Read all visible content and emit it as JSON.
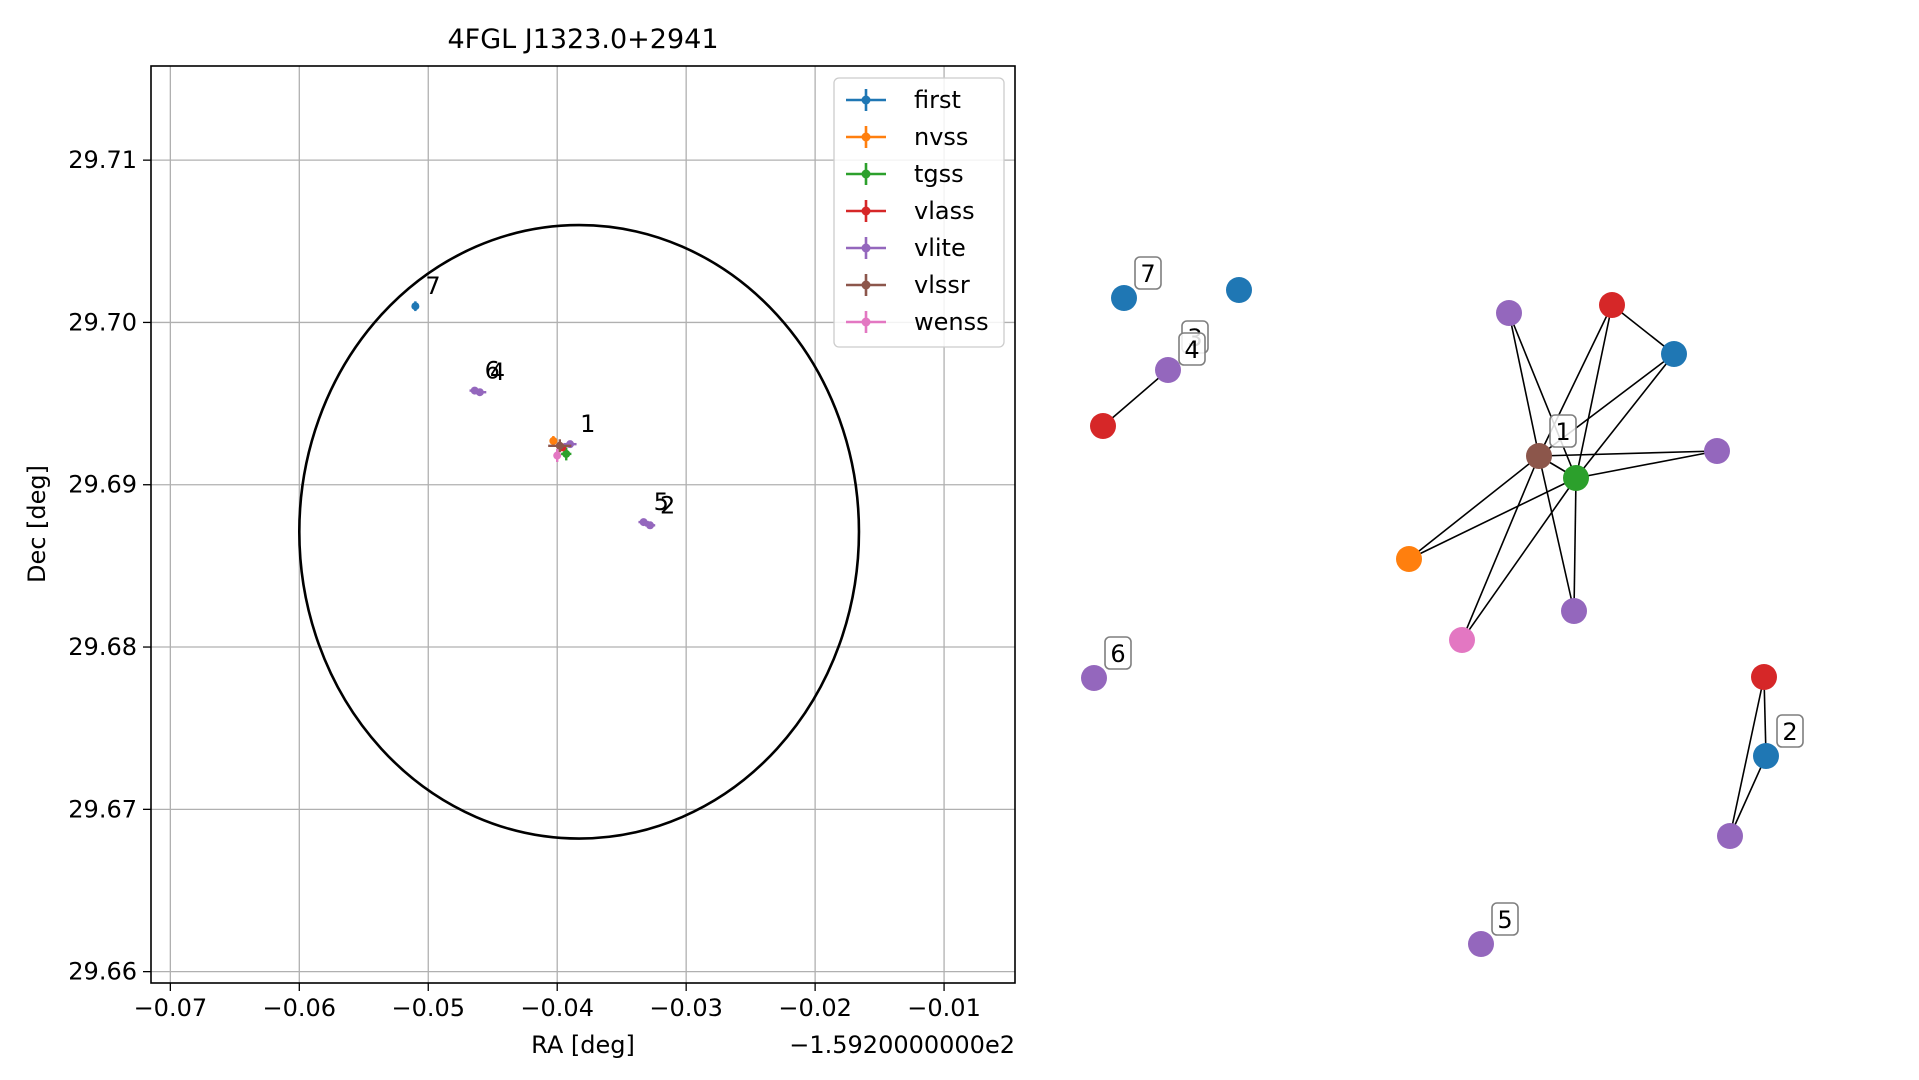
{
  "chart_data": [
    {
      "type": "scatter",
      "title": "4FGL J1323.0+2941",
      "xlabel": "RA [deg]",
      "ylabel": "Dec [deg]",
      "x_offset_label": "−1.5920000000e2",
      "xlim": [
        -0.0715,
        -0.0045
      ],
      "ylim": [
        29.6593,
        29.7158
      ],
      "x_ticks": [
        -0.07,
        -0.06,
        -0.05,
        -0.04,
        -0.03,
        -0.02,
        -0.01
      ],
      "x_tick_labels": [
        "−0.07",
        "−0.06",
        "−0.05",
        "−0.04",
        "−0.03",
        "−0.02",
        "−0.01"
      ],
      "y_ticks": [
        29.66,
        29.67,
        29.68,
        29.69,
        29.7,
        29.71
      ],
      "y_tick_labels": [
        "29.66",
        "29.67",
        "29.68",
        "29.69",
        "29.70",
        "29.71"
      ],
      "grid": true,
      "legend_position": "top-right",
      "ellipse": {
        "center": [
          -0.0383,
          29.6871
        ],
        "semi_axis_x": 0.0217,
        "semi_axis_y": 0.0189
      },
      "series": [
        {
          "name": "first",
          "color": "#1f77b4",
          "points": [
            {
              "x": -0.051,
              "y": 29.701,
              "xerr": 0.0002,
              "yerr": 0.0003
            }
          ]
        },
        {
          "name": "nvss",
          "color": "#ff7f0e",
          "points": [
            {
              "x": -0.0403,
              "y": 29.6927,
              "xerr": 0.0003,
              "yerr": 0.0003
            }
          ]
        },
        {
          "name": "tgss",
          "color": "#2ca02c",
          "points": [
            {
              "x": -0.0393,
              "y": 29.6919,
              "xerr": 0.0004,
              "yerr": 0.0004
            }
          ]
        },
        {
          "name": "vlass",
          "color": "#d62728",
          "points": [
            {
              "x": -0.0396,
              "y": 29.6923,
              "xerr": 0.0001,
              "yerr": 0.0001
            }
          ]
        },
        {
          "name": "vlite",
          "color": "#9467bd",
          "points": [
            {
              "x": -0.039,
              "y": 29.6925,
              "xerr": 0.0005,
              "yerr": 0.0002
            },
            {
              "x": -0.046,
              "y": 29.6957,
              "xerr": 0.0005,
              "yerr": 0.0002
            },
            {
              "x": -0.0464,
              "y": 29.6958,
              "xerr": 0.0004,
              "yerr": 0.0002
            },
            {
              "x": -0.0328,
              "y": 29.6875,
              "xerr": 0.0004,
              "yerr": 0.0002
            },
            {
              "x": -0.0333,
              "y": 29.6877,
              "xerr": 0.0004,
              "yerr": 0.0002
            }
          ]
        },
        {
          "name": "vlssr",
          "color": "#8c564b",
          "points": [
            {
              "x": -0.0398,
              "y": 29.6924,
              "xerr": 0.0009,
              "yerr": 0.0004
            }
          ]
        },
        {
          "name": "wenss",
          "color": "#e377c2",
          "points": [
            {
              "x": -0.04,
              "y": 29.6918,
              "xerr": 0.0002,
              "yerr": 0.0004
            }
          ]
        }
      ],
      "cluster_labels": [
        {
          "text": "7",
          "x": -0.051,
          "y": 29.701
        },
        {
          "text": "6",
          "x": -0.0464,
          "y": 29.6958
        },
        {
          "text": "4",
          "x": -0.046,
          "y": 29.6957
        },
        {
          "text": "1",
          "x": -0.039,
          "y": 29.6925
        },
        {
          "text": "5",
          "x": -0.0333,
          "y": 29.6877
        },
        {
          "text": "2",
          "x": -0.0328,
          "y": 29.6875
        }
      ]
    },
    {
      "type": "network",
      "nodes": [
        {
          "id": "n7a",
          "color": "#1f77b4"
        },
        {
          "id": "n7b",
          "color": "#1f77b4"
        },
        {
          "id": "n4",
          "color": "#9467bd"
        },
        {
          "id": "n3",
          "color": "#d62728"
        },
        {
          "id": "n6",
          "color": "#9467bd"
        },
        {
          "id": "n5",
          "color": "#9467bd"
        },
        {
          "id": "c_vlite_top",
          "color": "#9467bd"
        },
        {
          "id": "c_vlass",
          "color": "#d62728"
        },
        {
          "id": "c_first",
          "color": "#1f77b4"
        },
        {
          "id": "c_vlssr",
          "color": "#8c564b"
        },
        {
          "id": "c_tgss",
          "color": "#2ca02c"
        },
        {
          "id": "c_vlite_right",
          "color": "#9467bd"
        },
        {
          "id": "c_nvss",
          "color": "#ff7f0e"
        },
        {
          "id": "c_vlite_bottom",
          "color": "#9467bd"
        },
        {
          "id": "c_wenss",
          "color": "#e377c2"
        },
        {
          "id": "n2_vlass",
          "color": "#d62728"
        },
        {
          "id": "n2_first",
          "color": "#1f77b4"
        },
        {
          "id": "n2_vlite",
          "color": "#9467bd"
        }
      ],
      "edges": [
        [
          "n4",
          "n3"
        ],
        [
          "c_vlite_top",
          "c_vlssr"
        ],
        [
          "c_vlite_top",
          "c_tgss"
        ],
        [
          "c_vlass",
          "c_first"
        ],
        [
          "c_vlass",
          "c_vlssr"
        ],
        [
          "c_vlass",
          "c_tgss"
        ],
        [
          "c_first",
          "c_vlssr"
        ],
        [
          "c_first",
          "c_tgss"
        ],
        [
          "c_vlssr",
          "c_tgss"
        ],
        [
          "c_vlssr",
          "c_vlite_right"
        ],
        [
          "c_tgss",
          "c_vlite_right"
        ],
        [
          "c_vlssr",
          "c_nvss"
        ],
        [
          "c_tgss",
          "c_nvss"
        ],
        [
          "c_vlssr",
          "c_wenss"
        ],
        [
          "c_tgss",
          "c_wenss"
        ],
        [
          "c_vlssr",
          "c_vlite_bottom"
        ],
        [
          "c_tgss",
          "c_vlite_bottom"
        ],
        [
          "n2_vlass",
          "n2_first"
        ],
        [
          "n2_vlass",
          "n2_vlite"
        ],
        [
          "n2_first",
          "n2_vlite"
        ]
      ],
      "labels": [
        {
          "text": "7",
          "node": "n7a"
        },
        {
          "text": "3",
          "node": "n4"
        },
        {
          "text": "4",
          "node": "n4"
        },
        {
          "text": "1",
          "node": "c_vlssr"
        },
        {
          "text": "6",
          "node": "n6"
        },
        {
          "text": "2",
          "node": "n2_first"
        },
        {
          "text": "5",
          "node": "n5"
        }
      ]
    }
  ]
}
